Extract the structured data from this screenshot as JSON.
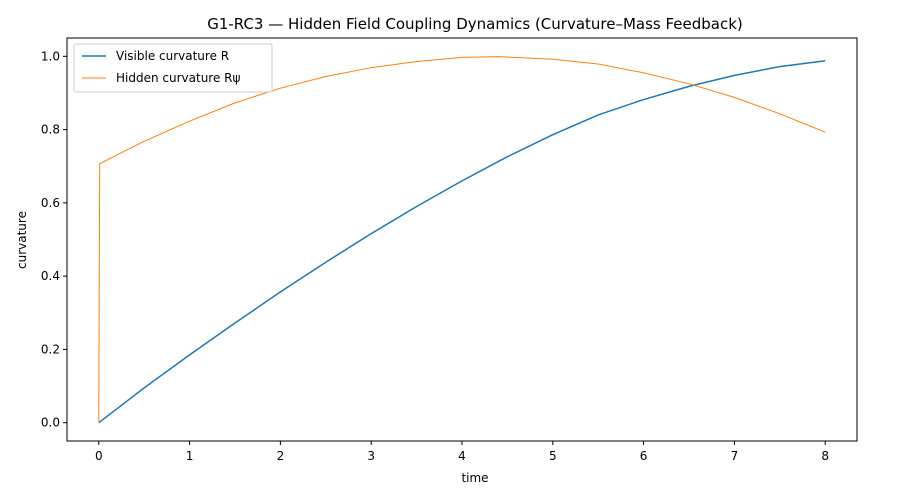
{
  "chart_data": {
    "type": "line",
    "title": "G1-RC3 — Hidden Field Coupling Dynamics (Curvature–Mass Feedback)",
    "xlabel": "time",
    "ylabel": "curvature",
    "xlim": [
      -0.35,
      8.35
    ],
    "ylim": [
      -0.05,
      1.05
    ],
    "xticks": [
      0,
      1,
      2,
      3,
      4,
      5,
      6,
      7,
      8
    ],
    "yticks": [
      0.0,
      0.2,
      0.4,
      0.6,
      0.8,
      1.0
    ],
    "xtick_labels": [
      "0",
      "1",
      "2",
      "3",
      "4",
      "5",
      "6",
      "7",
      "8"
    ],
    "ytick_labels": [
      "0.0",
      "0.2",
      "0.4",
      "0.6",
      "0.8",
      "1.0"
    ],
    "grid": false,
    "legend_position": "upper-left",
    "series": [
      {
        "name": "Visible curvature R",
        "color": "#1f77b4",
        "x": [
          0,
          0.5,
          1,
          1.5,
          2,
          2.5,
          3,
          3.5,
          4,
          4.5,
          5,
          5.5,
          6,
          6.5,
          7,
          7.5,
          8
        ],
        "y": [
          0.0,
          0.095,
          0.185,
          0.272,
          0.357,
          0.438,
          0.516,
          0.59,
          0.66,
          0.726,
          0.786,
          0.84,
          0.882,
          0.918,
          0.948,
          0.972,
          0.988
        ]
      },
      {
        "name": "Hidden curvature Rψ",
        "color": "#ff7f0e",
        "x": [
          0,
          0.01,
          0.5,
          1,
          1.5,
          2,
          2.5,
          3,
          3.5,
          4,
          4.4,
          5,
          5.5,
          6,
          6.5,
          7,
          7.5,
          8
        ],
        "y": [
          0.0,
          0.707,
          0.768,
          0.823,
          0.873,
          0.913,
          0.945,
          0.969,
          0.986,
          0.997,
          0.999,
          0.992,
          0.979,
          0.955,
          0.925,
          0.888,
          0.843,
          0.793
        ]
      }
    ]
  }
}
